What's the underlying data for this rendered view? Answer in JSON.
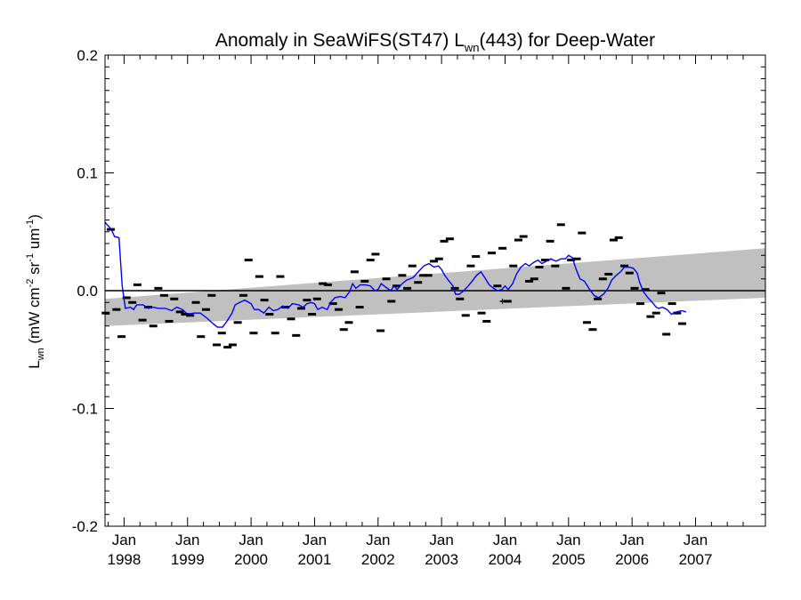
{
  "chart_data": {
    "type": "scatter",
    "title": {
      "prefix": "Anomaly in SeaWiFS(ST47) L",
      "subscript": "wn",
      "suffix": "(443) for Deep-Water"
    },
    "ylabel": {
      "main": "L",
      "subscript": "wn",
      "unit_open": " (mW cm",
      "exp1": "-2",
      "unit_mid1": " sr",
      "exp2": "-1",
      "unit_mid2": " um",
      "exp3": "-1",
      "unit_close": ")"
    },
    "xlabel": "",
    "ylim": [
      -0.2,
      0.2
    ],
    "xlim": [
      1997.7,
      2008.1
    ],
    "y_ticks": [
      {
        "value": 0.2,
        "label": "0.2"
      },
      {
        "value": 0.1,
        "label": "0.1"
      },
      {
        "value": 0.0,
        "label": "0.0"
      },
      {
        "value": -0.1,
        "label": "-0.1"
      },
      {
        "value": -0.2,
        "label": "-0.2"
      }
    ],
    "x_ticks": [
      {
        "value": 1998.0,
        "month": "Jan",
        "year": "1998"
      },
      {
        "value": 1999.0,
        "month": "Jan",
        "year": "1999"
      },
      {
        "value": 2000.0,
        "month": "Jan",
        "year": "2000"
      },
      {
        "value": 2001.0,
        "month": "Jan",
        "year": "2001"
      },
      {
        "value": 2002.0,
        "month": "Jan",
        "year": "2002"
      },
      {
        "value": 2003.0,
        "month": "Jan",
        "year": "2003"
      },
      {
        "value": 2004.0,
        "month": "Jan",
        "year": "2004"
      },
      {
        "value": 2005.0,
        "month": "Jan",
        "year": "2005"
      },
      {
        "value": 2006.0,
        "month": "Jan",
        "year": "2006"
      },
      {
        "value": 2007.0,
        "month": "Jan",
        "year": "2007"
      }
    ],
    "zero_line": 0.0,
    "band": {
      "color": "#c0c0c0",
      "x": [
        1997.7,
        2008.1
      ],
      "upper": [
        -0.007,
        0.036
      ],
      "lower": [
        -0.03,
        -0.006
      ]
    },
    "series": [
      {
        "kind": "monthly-anomaly-markers",
        "color": "#000000",
        "points": [
          [
            1997.71,
            -0.019
          ],
          [
            1997.79,
            0.052
          ],
          [
            1997.88,
            -0.016
          ],
          [
            1997.96,
            -0.039
          ],
          [
            1998.04,
            -0.006
          ],
          [
            1998.13,
            -0.01
          ],
          [
            1998.21,
            0.005
          ],
          [
            1998.29,
            -0.025
          ],
          [
            1998.38,
            -0.014
          ],
          [
            1998.46,
            -0.03
          ],
          [
            1998.54,
            0.002
          ],
          [
            1998.63,
            -0.004
          ],
          [
            1998.71,
            -0.026
          ],
          [
            1998.79,
            -0.007
          ],
          [
            1998.88,
            -0.018
          ],
          [
            1998.96,
            -0.02
          ],
          [
            1999.04,
            -0.021
          ],
          [
            1999.13,
            -0.01
          ],
          [
            1999.21,
            -0.039
          ],
          [
            1999.29,
            -0.016
          ],
          [
            1999.38,
            -0.004
          ],
          [
            1999.46,
            -0.046
          ],
          [
            1999.54,
            -0.036
          ],
          [
            1999.63,
            -0.048
          ],
          [
            1999.71,
            -0.046
          ],
          [
            1999.79,
            -0.027
          ],
          [
            1999.88,
            -0.004
          ],
          [
            1999.96,
            0.026
          ],
          [
            2000.04,
            -0.036
          ],
          [
            2000.13,
            0.012
          ],
          [
            2000.21,
            -0.008
          ],
          [
            2000.29,
            -0.02
          ],
          [
            2000.38,
            -0.036
          ],
          [
            2000.46,
            0.012
          ],
          [
            2000.54,
            -0.014
          ],
          [
            2000.63,
            -0.024
          ],
          [
            2000.71,
            -0.038
          ],
          [
            2000.79,
            -0.015
          ],
          [
            2000.88,
            -0.008
          ],
          [
            2000.96,
            -0.02
          ],
          [
            2001.04,
            -0.007
          ],
          [
            2001.13,
            0.006
          ],
          [
            2001.21,
            0.005
          ],
          [
            2001.29,
            -0.011
          ],
          [
            2001.38,
            -0.016
          ],
          [
            2001.46,
            -0.033
          ],
          [
            2001.54,
            -0.027
          ],
          [
            2001.63,
            0.016
          ],
          [
            2001.71,
            -0.014
          ],
          [
            2001.79,
            0.008
          ],
          [
            2001.88,
            0.026
          ],
          [
            2001.96,
            0.031
          ],
          [
            2002.04,
            -0.034
          ],
          [
            2002.13,
            0.01
          ],
          [
            2002.21,
            -0.009
          ],
          [
            2002.29,
            0.004
          ],
          [
            2002.38,
            0.013
          ],
          [
            2002.46,
            0.002
          ],
          [
            2002.54,
            0.021
          ],
          [
            2002.63,
            0.007
          ],
          [
            2002.71,
            0.013
          ],
          [
            2002.79,
            0.013
          ],
          [
            2002.88,
            0.025
          ],
          [
            2002.96,
            0.027
          ],
          [
            2003.04,
            0.042
          ],
          [
            2003.13,
            0.044
          ],
          [
            2003.21,
            0.002
          ],
          [
            2003.29,
            -0.007
          ],
          [
            2003.38,
            -0.021
          ],
          [
            2003.46,
            0.021
          ],
          [
            2003.54,
            0.029
          ],
          [
            2003.63,
            -0.019
          ],
          [
            2003.71,
            -0.026
          ],
          [
            2003.79,
            0.032
          ],
          [
            2003.88,
            0.004
          ],
          [
            2003.96,
            0.036
          ],
          [
            2004.04,
            -0.009
          ],
          [
            2004.13,
            0.021
          ],
          [
            2004.21,
            0.043
          ],
          [
            2004.29,
            0.046
          ],
          [
            2004.38,
            0.008
          ],
          [
            2004.46,
            0.01
          ],
          [
            2004.54,
            0.02
          ],
          [
            2004.63,
            0.026
          ],
          [
            2004.71,
            0.042
          ],
          [
            2004.79,
            0.021
          ],
          [
            2004.88,
            0.056
          ],
          [
            2004.96,
            0.002
          ],
          [
            2005.04,
            0.026
          ],
          [
            2005.13,
            0.027
          ],
          [
            2005.21,
            0.049
          ],
          [
            2005.29,
            -0.027
          ],
          [
            2005.38,
            -0.033
          ],
          [
            2005.46,
            -0.007
          ],
          [
            2005.54,
            0.01
          ],
          [
            2005.63,
            0.014
          ],
          [
            2005.71,
            0.043
          ],
          [
            2005.79,
            0.045
          ],
          [
            2005.88,
            0.021
          ],
          [
            2005.96,
            0.015
          ],
          [
            2006.04,
            0.002
          ],
          [
            2006.13,
            -0.011
          ],
          [
            2006.21,
            0.001
          ],
          [
            2006.29,
            -0.022
          ],
          [
            2006.38,
            -0.019
          ],
          [
            2006.46,
            -0.002
          ],
          [
            2006.54,
            -0.037
          ],
          [
            2006.63,
            -0.011
          ],
          [
            2006.71,
            -0.019
          ],
          [
            2006.79,
            -0.028
          ]
        ]
      },
      {
        "kind": "running-mean",
        "color": "#0000ff",
        "points": [
          [
            1997.7,
            0.058
          ],
          [
            1997.8,
            0.052
          ],
          [
            1997.85,
            0.046
          ],
          [
            1997.92,
            0.045
          ],
          [
            1997.97,
            0.004
          ],
          [
            1998.02,
            -0.015
          ],
          [
            1998.1,
            -0.014
          ],
          [
            1998.15,
            -0.016
          ],
          [
            1998.2,
            -0.012
          ],
          [
            1998.3,
            -0.012
          ],
          [
            1998.38,
            -0.015
          ],
          [
            1998.45,
            -0.014
          ],
          [
            1998.55,
            -0.015
          ],
          [
            1998.65,
            -0.015
          ],
          [
            1998.75,
            -0.017
          ],
          [
            1998.83,
            -0.014
          ],
          [
            1998.92,
            -0.016
          ],
          [
            1999.0,
            -0.02
          ],
          [
            1999.1,
            -0.019
          ],
          [
            1999.2,
            -0.019
          ],
          [
            1999.3,
            -0.023
          ],
          [
            1999.4,
            -0.028
          ],
          [
            1999.47,
            -0.031
          ],
          [
            1999.55,
            -0.031
          ],
          [
            1999.62,
            -0.026
          ],
          [
            1999.7,
            -0.019
          ],
          [
            1999.75,
            -0.012
          ],
          [
            1999.82,
            -0.01
          ],
          [
            1999.9,
            -0.008
          ],
          [
            2000.0,
            -0.011
          ],
          [
            2000.05,
            -0.016
          ],
          [
            2000.12,
            -0.016
          ],
          [
            2000.2,
            -0.019
          ],
          [
            2000.28,
            -0.014
          ],
          [
            2000.35,
            -0.017
          ],
          [
            2000.42,
            -0.016
          ],
          [
            2000.5,
            -0.013
          ],
          [
            2000.58,
            -0.015
          ],
          [
            2000.65,
            -0.011
          ],
          [
            2000.75,
            -0.012
          ],
          [
            2000.82,
            -0.014
          ],
          [
            2000.88,
            -0.011
          ],
          [
            2000.95,
            -0.01
          ],
          [
            2001.0,
            -0.011
          ],
          [
            2001.05,
            -0.016
          ],
          [
            2001.12,
            -0.014
          ],
          [
            2001.2,
            -0.016
          ],
          [
            2001.25,
            -0.01
          ],
          [
            2001.32,
            -0.006
          ],
          [
            2001.4,
            -0.005
          ],
          [
            2001.48,
            -0.006
          ],
          [
            2001.55,
            -0.001
          ],
          [
            2001.6,
            0.006
          ],
          [
            2001.65,
            0.002
          ],
          [
            2001.72,
            0.005
          ],
          [
            2001.8,
            0.005
          ],
          [
            2001.88,
            0.004
          ],
          [
            2001.95,
            0.0
          ],
          [
            2002.0,
            0.001
          ],
          [
            2002.05,
            0.006
          ],
          [
            2002.12,
            0.003
          ],
          [
            2002.2,
            0.0
          ],
          [
            2002.25,
            0.004
          ],
          [
            2002.3,
            0.001
          ],
          [
            2002.38,
            0.006
          ],
          [
            2002.45,
            0.009
          ],
          [
            2002.55,
            0.011
          ],
          [
            2002.65,
            0.017
          ],
          [
            2002.72,
            0.021
          ],
          [
            2002.8,
            0.023
          ],
          [
            2002.88,
            0.02
          ],
          [
            2002.95,
            0.021
          ],
          [
            2003.0,
            0.018
          ],
          [
            2003.05,
            0.013
          ],
          [
            2003.12,
            0.008
          ],
          [
            2003.18,
            0.004
          ],
          [
            2003.22,
            -0.003
          ],
          [
            2003.28,
            -0.003
          ],
          [
            2003.35,
            0.0
          ],
          [
            2003.42,
            0.004
          ],
          [
            2003.48,
            0.008
          ],
          [
            2003.55,
            0.013
          ],
          [
            2003.62,
            0.016
          ],
          [
            2003.68,
            0.011
          ],
          [
            2003.75,
            0.005
          ],
          [
            2003.82,
            0.002
          ],
          [
            2003.88,
            0.0
          ],
          [
            2003.95,
            0.001
          ],
          [
            2004.0,
            0.004
          ],
          [
            2004.05,
            0.001
          ],
          [
            2004.12,
            0.006
          ],
          [
            2004.18,
            0.014
          ],
          [
            2004.25,
            0.02
          ],
          [
            2004.32,
            0.023
          ],
          [
            2004.38,
            0.021
          ],
          [
            2004.45,
            0.024
          ],
          [
            2004.52,
            0.026
          ],
          [
            2004.58,
            0.023
          ],
          [
            2004.65,
            0.025
          ],
          [
            2004.72,
            0.027
          ],
          [
            2004.8,
            0.025
          ],
          [
            2004.88,
            0.027
          ],
          [
            2004.95,
            0.027
          ],
          [
            2005.0,
            0.03
          ],
          [
            2005.06,
            0.028
          ],
          [
            2005.12,
            0.018
          ],
          [
            2005.18,
            0.01
          ],
          [
            2005.25,
            0.008
          ],
          [
            2005.32,
            0.002
          ],
          [
            2005.4,
            -0.004
          ],
          [
            2005.47,
            -0.006
          ],
          [
            2005.55,
            -0.003
          ],
          [
            2005.62,
            0.002
          ],
          [
            2005.68,
            0.009
          ],
          [
            2005.75,
            0.013
          ],
          [
            2005.82,
            0.016
          ],
          [
            2005.88,
            0.02
          ],
          [
            2005.95,
            0.02
          ],
          [
            2006.02,
            0.019
          ],
          [
            2006.08,
            0.015
          ],
          [
            2006.12,
            0.007
          ],
          [
            2006.18,
            -0.001
          ],
          [
            2006.25,
            -0.006
          ],
          [
            2006.32,
            -0.01
          ],
          [
            2006.38,
            -0.014
          ],
          [
            2006.42,
            -0.015
          ],
          [
            2006.48,
            -0.014
          ],
          [
            2006.55,
            -0.016
          ],
          [
            2006.62,
            -0.02
          ],
          [
            2006.7,
            -0.018
          ],
          [
            2006.78,
            -0.017
          ],
          [
            2006.85,
            -0.018
          ]
        ]
      }
    ],
    "error_bar_points": [
      [
        2003.96,
        -0.009
      ]
    ]
  }
}
